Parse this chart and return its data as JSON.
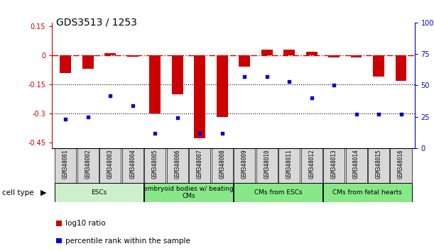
{
  "title": "GDS3513 / 1253",
  "samples": [
    "GSM348001",
    "GSM348002",
    "GSM348003",
    "GSM348004",
    "GSM348005",
    "GSM348006",
    "GSM348007",
    "GSM348008",
    "GSM348009",
    "GSM348010",
    "GSM348011",
    "GSM348012",
    "GSM348013",
    "GSM348014",
    "GSM348015",
    "GSM348016"
  ],
  "log10_ratio": [
    -0.09,
    -0.07,
    0.01,
    -0.005,
    -0.3,
    -0.2,
    -0.43,
    -0.32,
    -0.06,
    0.03,
    0.03,
    0.02,
    -0.01,
    -0.01,
    -0.11,
    -0.13
  ],
  "percentile_rank": [
    23,
    25,
    42,
    34,
    12,
    24,
    12,
    12,
    57,
    57,
    53,
    40,
    50,
    27,
    27,
    27
  ],
  "cell_types": [
    {
      "label": "ESCs",
      "start": 0,
      "end": 3,
      "color": "#ccf0cc"
    },
    {
      "label": "embryoid bodies w/ beating\nCMs",
      "start": 4,
      "end": 7,
      "color": "#88e888"
    },
    {
      "label": "CMs from ESCs",
      "start": 8,
      "end": 11,
      "color": "#88e888"
    },
    {
      "label": "CMs from fetal hearts",
      "start": 12,
      "end": 15,
      "color": "#88e888"
    }
  ],
  "bar_color": "#cc0000",
  "dot_color": "#0000cc",
  "hline_color": "#cc0000",
  "dotline_values": [
    -0.15,
    -0.3
  ],
  "ylim_left": [
    -0.48,
    0.17
  ],
  "ylim_right": [
    0,
    100
  ],
  "yticks_left": [
    0.15,
    0.0,
    -0.15,
    -0.3,
    -0.45
  ],
  "yticks_right": [
    100,
    75,
    50,
    25,
    0
  ],
  "legend_items": [
    {
      "label": "log10 ratio",
      "color": "#cc0000"
    },
    {
      "label": "percentile rank within the sample",
      "color": "#0000cc"
    }
  ]
}
